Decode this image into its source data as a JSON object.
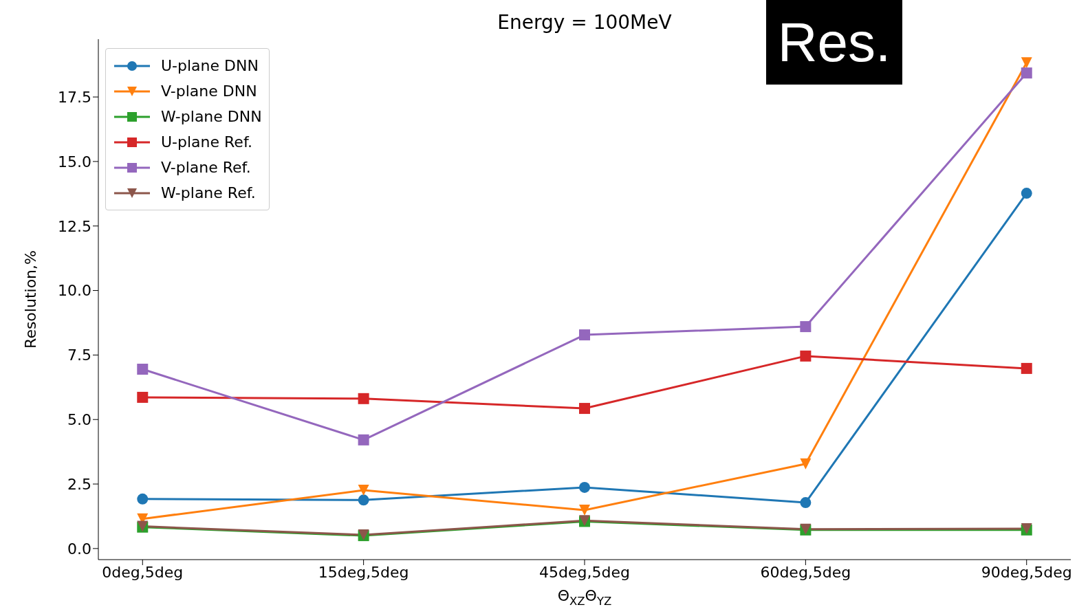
{
  "chart_data": {
    "type": "line",
    "title": "Energy = 100MeV",
    "xlabel": "Θ$_{XZ}$Θ$_{YZ}$",
    "ylabel": "Resolution,%",
    "annotations": [
      "Res."
    ],
    "categories": [
      "0deg,5deg",
      "15deg,5deg",
      "45deg,5deg",
      "60deg,5deg",
      "90deg,5deg"
    ],
    "series": [
      {
        "name": "U-plane DNN",
        "color": "#1f77b4",
        "marker": "circle",
        "values": [
          1.92,
          1.88,
          2.37,
          1.78,
          13.77
        ]
      },
      {
        "name": "V-plane DNN",
        "color": "#ff7f0e",
        "marker": "triangle",
        "values": [
          1.15,
          2.26,
          1.49,
          3.28,
          18.83
        ]
      },
      {
        "name": "W-plane DNN",
        "color": "#2ca02c",
        "marker": "square",
        "values": [
          0.83,
          0.5,
          1.05,
          0.72,
          0.72
        ]
      },
      {
        "name": "U-plane Ref.",
        "color": "#d62728",
        "marker": "square",
        "values": [
          5.86,
          5.81,
          5.43,
          7.46,
          6.98
        ]
      },
      {
        "name": "V-plane Ref.",
        "color": "#9467bd",
        "marker": "square",
        "values": [
          6.95,
          4.21,
          8.28,
          8.6,
          18.43
        ]
      },
      {
        "name": "W-plane Ref.",
        "color": "#8c564b",
        "marker": "triangle",
        "values": [
          0.86,
          0.53,
          1.08,
          0.75,
          0.77
        ]
      }
    ],
    "ylim": [
      -0.43,
      19.74
    ],
    "yticks": [
      {
        "value": 0,
        "label": "0.0"
      },
      2.5,
      {
        "value": 5,
        "label": "5.0"
      },
      7.5,
      {
        "value": 10,
        "label": "10.0"
      },
      12.5,
      {
        "value": 15,
        "label": "15.0"
      },
      17.5
    ],
    "grid": false,
    "legend": "top left",
    "line_style": "solid"
  }
}
